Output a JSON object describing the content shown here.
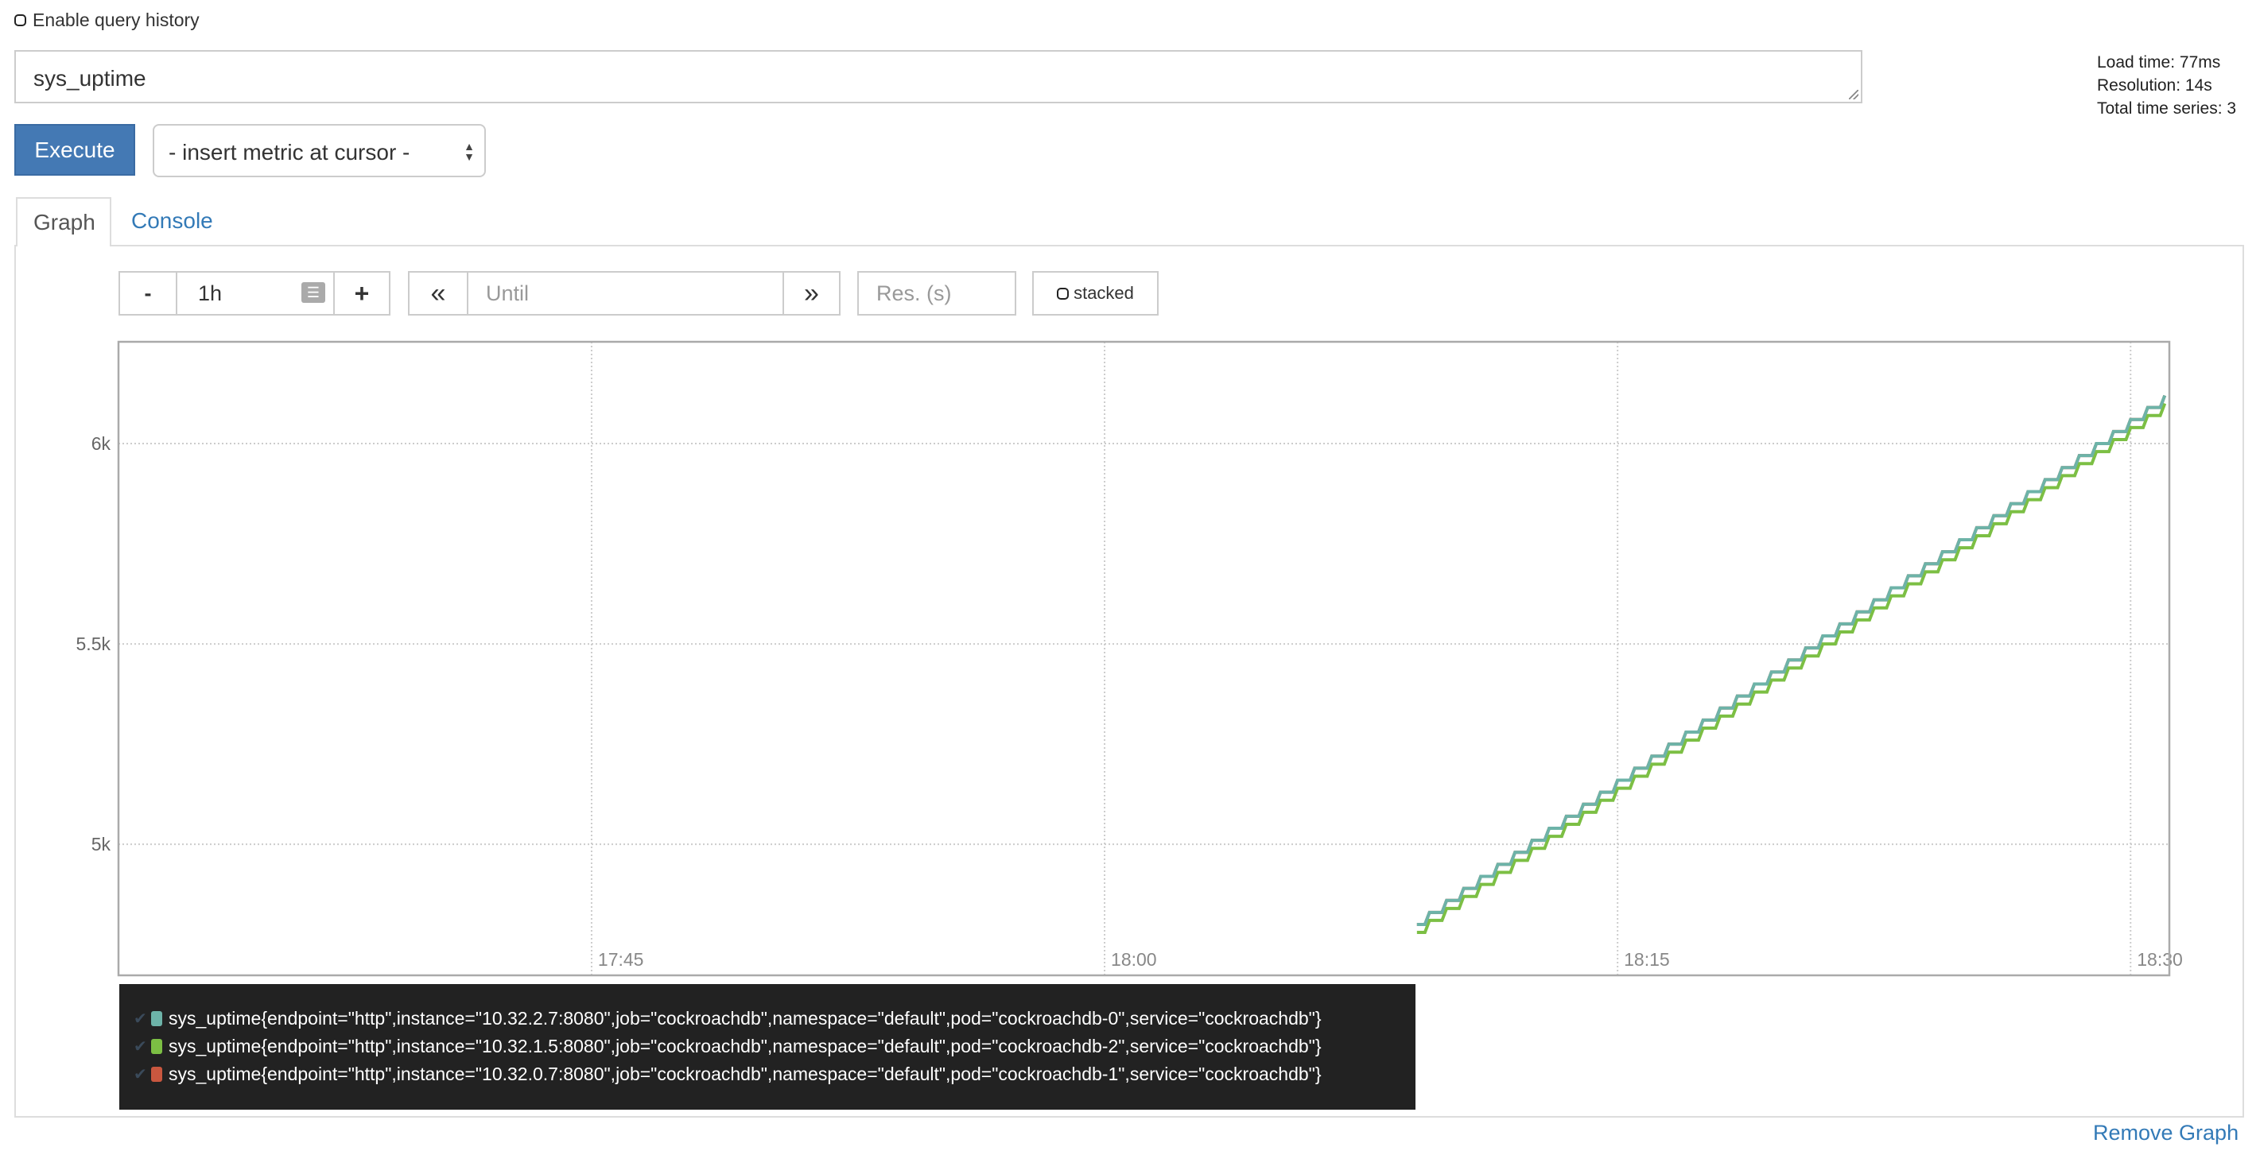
{
  "query_history": {
    "label": "Enable query history",
    "checked": false
  },
  "expression": {
    "value": "sys_uptime"
  },
  "stats": {
    "load_time": "Load time: 77ms",
    "resolution": "Resolution: 14s",
    "total_series": "Total time series: 3"
  },
  "execute_label": "Execute",
  "metric_select": {
    "value": "- insert metric at cursor -"
  },
  "tabs": [
    {
      "label": "Graph",
      "active": true
    },
    {
      "label": "Console",
      "active": false
    }
  ],
  "controls": {
    "minus": "-",
    "range": "1h",
    "plus": "+",
    "back": "«",
    "until_placeholder": "Until",
    "forward": "»",
    "res_placeholder": "Res. (s)",
    "stacked_label": "stacked",
    "stacked_checked": false
  },
  "remove_graph": "Remove Graph",
  "chart_data": {
    "type": "line",
    "xlim": [
      "17:31:10",
      "18:31:08"
    ],
    "ylim": [
      4673,
      6254
    ],
    "x_ticks": [
      "17:45",
      "18:00",
      "18:15",
      "18:30"
    ],
    "y_ticks": [
      {
        "value": 5000,
        "label": "5k"
      },
      {
        "value": 5500,
        "label": "5.5k"
      },
      {
        "value": 6000,
        "label": "6k"
      }
    ],
    "grid": true,
    "x": [
      "18:09:30",
      "18:10:00",
      "18:10:30",
      "18:11:00",
      "18:11:30",
      "18:12:00",
      "18:12:30",
      "18:13:00",
      "18:13:30",
      "18:14:00",
      "18:14:30",
      "18:15:00",
      "18:15:30",
      "18:16:00",
      "18:16:30",
      "18:17:00",
      "18:17:30",
      "18:18:00",
      "18:18:30",
      "18:19:00",
      "18:19:30",
      "18:20:00",
      "18:20:30",
      "18:21:00",
      "18:21:30",
      "18:22:00",
      "18:22:30",
      "18:23:00",
      "18:23:30",
      "18:24:00",
      "18:24:30",
      "18:25:00",
      "18:25:30",
      "18:26:00",
      "18:26:30",
      "18:27:00",
      "18:27:30",
      "18:28:00",
      "18:28:30",
      "18:29:00",
      "18:29:30",
      "18:30:00",
      "18:30:30",
      "18:31:00"
    ],
    "series": [
      {
        "name": "sys_uptime{endpoint=\"http\",instance=\"10.32.2.7:8080\",job=\"cockroachdb\",namespace=\"default\",pod=\"cockroachdb-0\",service=\"cockroachdb\"}",
        "color": "#6db3a8",
        "values": [
          4830,
          4860,
          4890,
          4920,
          4950,
          4980,
          5010,
          5040,
          5070,
          5100,
          5130,
          5160,
          5190,
          5220,
          5250,
          5280,
          5310,
          5340,
          5370,
          5400,
          5430,
          5460,
          5490,
          5520,
          5550,
          5580,
          5610,
          5640,
          5670,
          5700,
          5730,
          5760,
          5790,
          5820,
          5850,
          5880,
          5910,
          5940,
          5970,
          6000,
          6030,
          6060,
          6090,
          6120
        ]
      },
      {
        "name": "sys_uptime{endpoint=\"http\",instance=\"10.32.1.5:8080\",job=\"cockroachdb\",namespace=\"default\",pod=\"cockroachdb-2\",service=\"cockroachdb\"}",
        "color": "#7cbf44",
        "values": [
          4810,
          4840,
          4870,
          4900,
          4930,
          4960,
          4990,
          5020,
          5050,
          5080,
          5110,
          5140,
          5170,
          5200,
          5230,
          5260,
          5290,
          5320,
          5350,
          5380,
          5410,
          5440,
          5470,
          5500,
          5530,
          5560,
          5590,
          5620,
          5650,
          5680,
          5710,
          5740,
          5770,
          5800,
          5830,
          5860,
          5890,
          5920,
          5950,
          5980,
          6010,
          6040,
          6070,
          6100
        ]
      },
      {
        "name": "sys_uptime{endpoint=\"http\",instance=\"10.32.0.7:8080\",job=\"cockroachdb\",namespace=\"default\",pod=\"cockroachdb-1\",service=\"cockroachdb\"}",
        "color": "#c9573f",
        "values": [
          4830,
          4860,
          4890,
          4920,
          4950,
          4980,
          5010,
          5040,
          5070,
          5100,
          5130,
          5160,
          5190,
          5220,
          5250,
          5280,
          5310,
          5340,
          5370,
          5400,
          5430,
          5460,
          5490,
          5520,
          5550,
          5580,
          5610,
          5640,
          5670,
          5700,
          5730,
          5760,
          5790,
          5820,
          5850,
          5880,
          5910,
          5940,
          5970,
          6000,
          6030,
          6060,
          6090,
          6120
        ]
      }
    ]
  }
}
